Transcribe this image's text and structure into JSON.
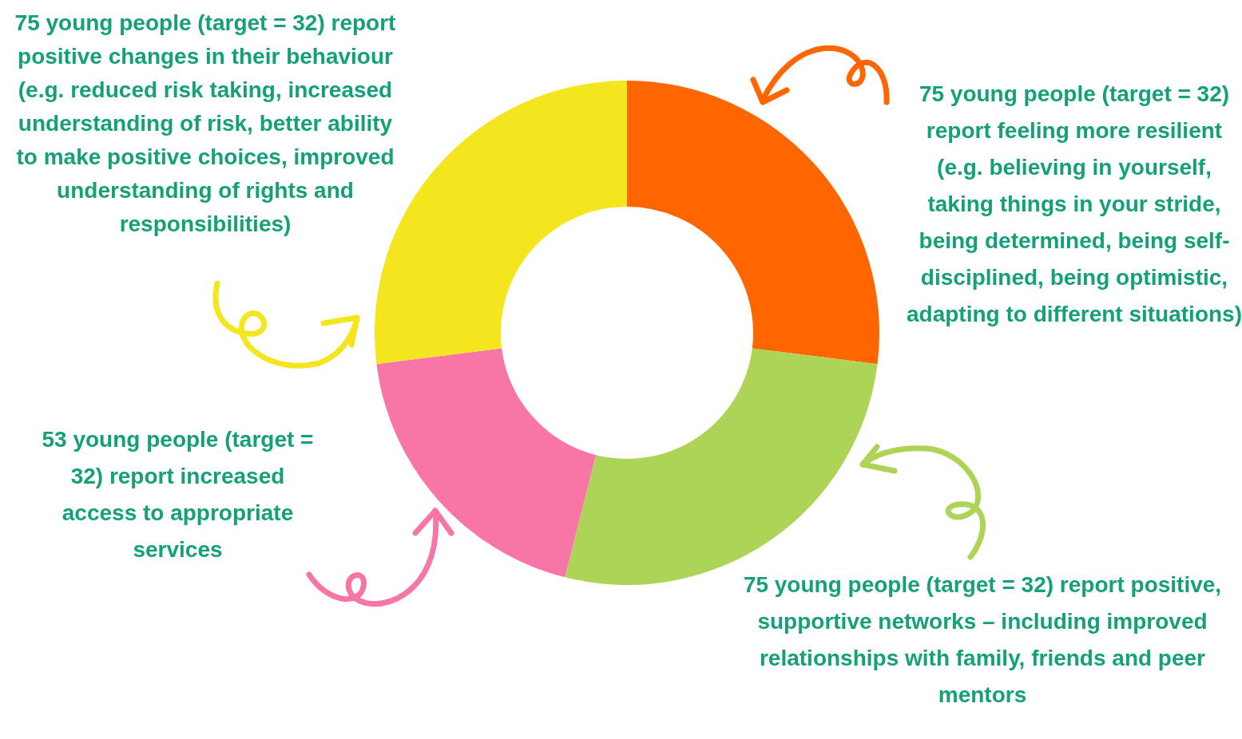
{
  "chart_data": {
    "type": "donut",
    "categories": [
      "75 young people (target = 32) report feeling more resilient (e.g. believing in yourself, taking things in your stride, being determined, being self-disciplined, being optimistic, adapting to different situations)",
      "75 young people (target = 32) report positive, supportive networks – including improved relationships with family, friends and peer mentors",
      "53 young people (target = 32) report increased access to appropriate services",
      "75 young people (target = 32) report positive changes in their behaviour (e.g. reduced risk taking, increased understanding of risk, better ability to make positive choices, improved understanding of rights and responsibilities)"
    ],
    "values": [
      75,
      75,
      53,
      75
    ],
    "colors": [
      "#ff6600",
      "#add357",
      "#f776a7",
      "#f5e51e"
    ],
    "legend": false
  }
}
